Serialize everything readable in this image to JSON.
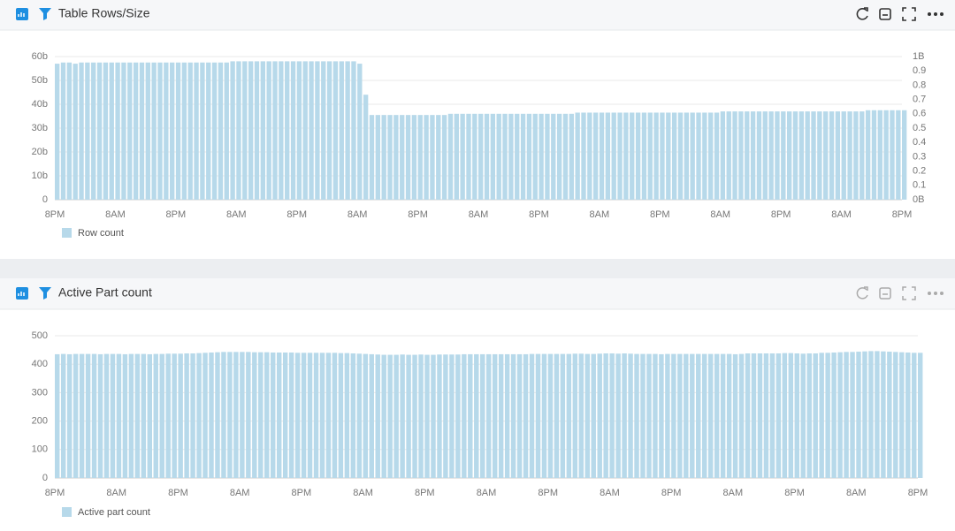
{
  "chart_data": [
    {
      "type": "bar",
      "title": "Table Rows/Size",
      "categories": [
        "8PM",
        null,
        null,
        null,
        null,
        null,
        null,
        null,
        null,
        null,
        "8AM",
        null,
        null,
        null,
        null,
        null,
        null,
        null,
        null,
        null,
        "8PM",
        null,
        null,
        null,
        null,
        null,
        null,
        null,
        null,
        null,
        "8AM",
        null,
        null,
        null,
        null,
        null,
        null,
        null,
        null,
        null,
        "8PM",
        null,
        null,
        null,
        null,
        null,
        null,
        null,
        null,
        null,
        "8AM",
        null,
        null,
        null,
        null,
        null,
        null,
        null,
        null,
        null,
        "8PM",
        null,
        null,
        null,
        null,
        null,
        null,
        null,
        null,
        null,
        "8AM",
        null,
        null,
        null,
        null,
        null,
        null,
        null,
        null,
        null,
        "8PM",
        null,
        null,
        null,
        null,
        null,
        null,
        null,
        null,
        null,
        "8AM",
        null,
        null,
        null,
        null,
        null,
        null,
        null,
        null,
        null,
        "8PM",
        null,
        null,
        null,
        null,
        null,
        null,
        null,
        null,
        null,
        "8AM",
        null,
        null,
        null,
        null,
        null,
        null,
        null,
        null,
        null,
        "8PM",
        null,
        null,
        null,
        null,
        null,
        null,
        null,
        null,
        null,
        "8AM",
        null,
        null,
        null,
        null,
        null,
        null,
        null,
        null,
        null,
        "8PM"
      ],
      "series": [
        {
          "name": "Row count",
          "color": "#b7d9ea",
          "values": [
            57,
            57.5,
            57.5,
            57,
            57.5,
            57.5,
            57.5,
            57.5,
            57.5,
            57.5,
            57.5,
            57.5,
            57.5,
            57.5,
            57.5,
            57.5,
            57.5,
            57.5,
            57.5,
            57.5,
            57.5,
            57.5,
            57.5,
            57.5,
            57.5,
            57.5,
            57.5,
            57.5,
            57.5,
            58,
            58,
            58,
            58,
            58,
            58,
            58,
            58,
            58,
            58,
            58,
            58,
            58,
            58,
            58,
            58,
            58,
            58,
            58,
            58,
            58,
            57,
            44,
            35.5,
            35.5,
            35.5,
            35.5,
            35.5,
            35.5,
            35.5,
            35.5,
            35.5,
            35.5,
            35.5,
            35.5,
            35.5,
            36,
            36,
            36,
            36,
            36,
            36,
            36,
            36,
            36,
            36,
            36,
            36,
            36,
            36,
            36,
            36,
            36,
            36,
            36,
            36,
            36,
            36.5,
            36.5,
            36.5,
            36.5,
            36.5,
            36.5,
            36.5,
            36.5,
            36.5,
            36.5,
            36.5,
            36.5,
            36.5,
            36.5,
            36.5,
            36.5,
            36.5,
            36.5,
            36.5,
            36.5,
            36.5,
            36.5,
            36.5,
            36.5,
            37,
            37,
            37,
            37,
            37,
            37,
            37,
            37,
            37,
            37,
            37,
            37,
            37,
            37,
            37,
            37,
            37,
            37,
            37,
            37,
            37,
            37,
            37,
            37,
            37.5,
            37.5,
            37.5,
            37.5,
            37.5,
            37.5,
            37.5
          ]
        }
      ],
      "ylim": [
        0,
        60
      ],
      "yticks": [
        0,
        {
          "value": 10,
          "label": "10b"
        },
        {
          "value": 20,
          "label": "20b"
        },
        {
          "value": 30,
          "label": "30b"
        },
        {
          "value": 40,
          "label": "40b"
        },
        {
          "value": 50,
          "label": "50b"
        },
        {
          "value": 60,
          "label": "60b"
        }
      ],
      "y2lim": [
        0,
        1
      ],
      "y2ticks": [
        {
          "value": 0,
          "label": "0B"
        },
        0.1,
        0.2,
        0.3,
        0.4,
        0.5,
        0.6,
        0.7,
        0.8,
        0.9,
        {
          "value": 1,
          "label": "1B"
        }
      ],
      "grid": true,
      "legend": "bottom-left"
    },
    {
      "type": "bar",
      "title": "Active Part count",
      "categories": [
        "8PM",
        null,
        null,
        null,
        null,
        null,
        null,
        null,
        null,
        null,
        "8AM",
        null,
        null,
        null,
        null,
        null,
        null,
        null,
        null,
        null,
        "8PM",
        null,
        null,
        null,
        null,
        null,
        null,
        null,
        null,
        null,
        "8AM",
        null,
        null,
        null,
        null,
        null,
        null,
        null,
        null,
        null,
        "8PM",
        null,
        null,
        null,
        null,
        null,
        null,
        null,
        null,
        null,
        "8AM",
        null,
        null,
        null,
        null,
        null,
        null,
        null,
        null,
        null,
        "8PM",
        null,
        null,
        null,
        null,
        null,
        null,
        null,
        null,
        null,
        "8AM",
        null,
        null,
        null,
        null,
        null,
        null,
        null,
        null,
        null,
        "8PM",
        null,
        null,
        null,
        null,
        null,
        null,
        null,
        null,
        null,
        "8AM",
        null,
        null,
        null,
        null,
        null,
        null,
        null,
        null,
        null,
        "8PM",
        null,
        null,
        null,
        null,
        null,
        null,
        null,
        null,
        null,
        "8AM",
        null,
        null,
        null,
        null,
        null,
        null,
        null,
        null,
        null,
        "8PM",
        null,
        null,
        null,
        null,
        null,
        null,
        null,
        null,
        null,
        "8AM",
        null,
        null,
        null,
        null,
        null,
        null,
        null,
        null,
        null,
        "8PM"
      ],
      "series": [
        {
          "name": "Active part count",
          "color": "#b7d9ea",
          "values": [
            435,
            436,
            435,
            436,
            436,
            436,
            436,
            435,
            436,
            436,
            436,
            435,
            436,
            436,
            436,
            435,
            436,
            436,
            437,
            437,
            437,
            438,
            438,
            439,
            440,
            441,
            442,
            443,
            443,
            443,
            443,
            443,
            442,
            442,
            442,
            441,
            441,
            441,
            441,
            440,
            440,
            440,
            440,
            440,
            440,
            440,
            439,
            439,
            438,
            437,
            436,
            435,
            434,
            433,
            433,
            433,
            434,
            433,
            433,
            434,
            433,
            433,
            434,
            434,
            434,
            434,
            435,
            435,
            435,
            435,
            435,
            435,
            435,
            435,
            435,
            435,
            435,
            436,
            436,
            436,
            436,
            436,
            436,
            436,
            437,
            437,
            436,
            436,
            437,
            438,
            438,
            437,
            438,
            437,
            436,
            436,
            436,
            436,
            435,
            436,
            436,
            436,
            436,
            436,
            436,
            436,
            436,
            436,
            436,
            436,
            435,
            436,
            438,
            438,
            438,
            438,
            438,
            438,
            439,
            439,
            438,
            437,
            438,
            438,
            440,
            440,
            441,
            442,
            443,
            443,
            444,
            445,
            446,
            446,
            445,
            444,
            443,
            442,
            441,
            440,
            440
          ]
        }
      ],
      "ylim": [
        0,
        500
      ],
      "yticks": [
        0,
        100,
        200,
        300,
        400,
        500
      ],
      "grid": true,
      "legend": "bottom-left"
    }
  ]
}
